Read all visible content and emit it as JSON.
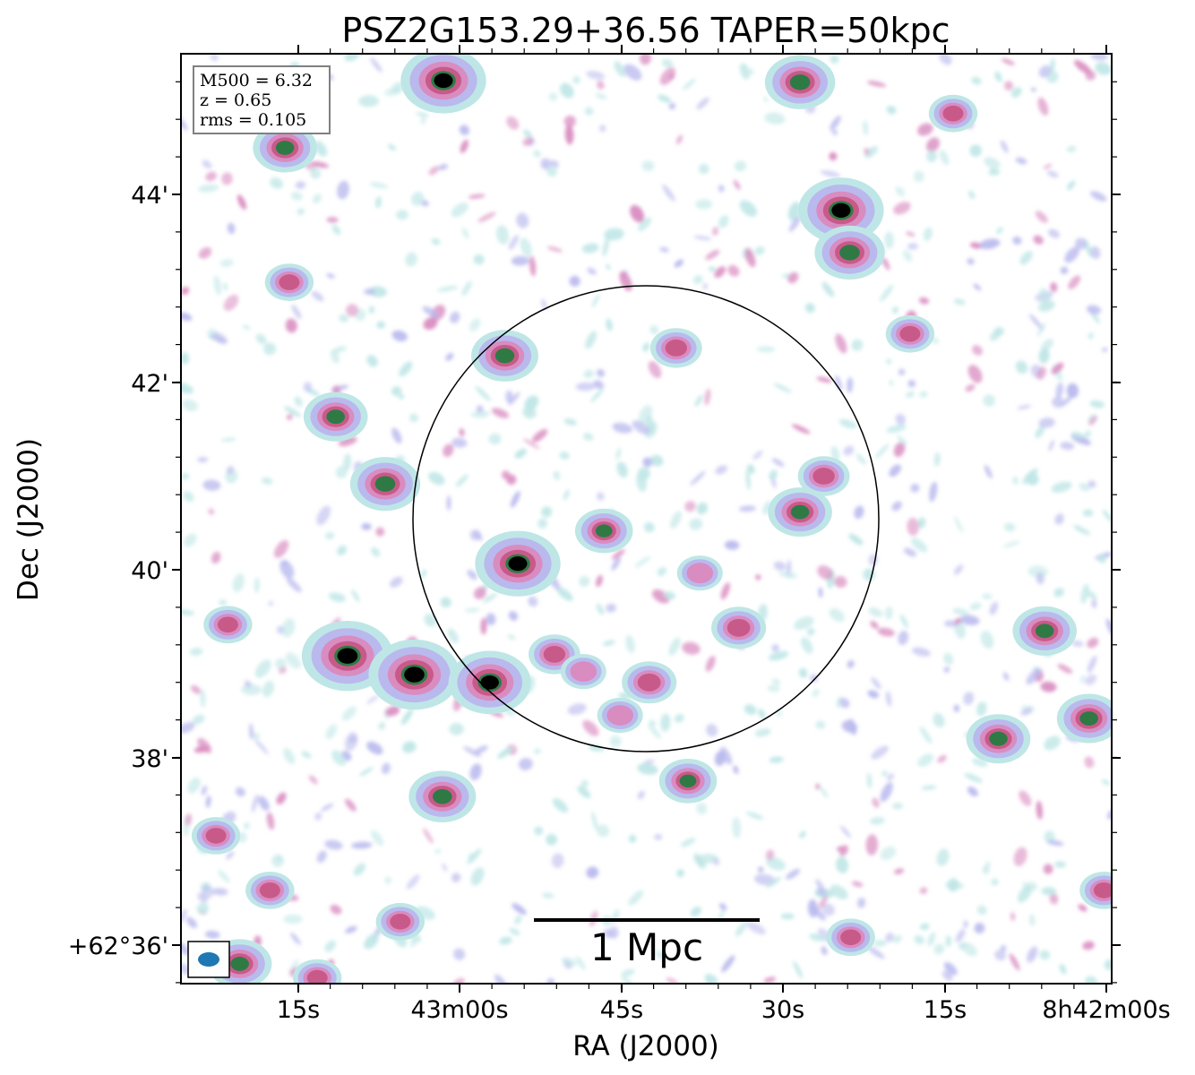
{
  "chart_data": {
    "type": "heatmap",
    "title": "PSZ2G153.29+36.56 TAPER=50kpc",
    "xlabel": "RA (J2000)",
    "ylabel": "Dec (J2000)",
    "x_ticks": [
      "15s",
      "43m00s",
      "45s",
      "30s",
      "15s",
      "8h42m00s"
    ],
    "y_ticks": [
      "+62°36'",
      "38'",
      "40'",
      "42'",
      "44'"
    ],
    "info_box": [
      "M500 = 6.32",
      "z = 0.65",
      "rms = 0.105"
    ],
    "scalebar_label": "1 Mpc",
    "colormap": "cubehelix_r",
    "colors": {
      "low": "#bfe6e6",
      "mid_low": "#b9b9ee",
      "mid": "#d98cc0",
      "mid_high": "#c85a8a",
      "high": "#2f7a44",
      "peak": "#000000",
      "circle": "#000000",
      "beam": "#1f77b4"
    },
    "sources": [
      {
        "ra": "08:43:10.4",
        "dec": "62:39:05",
        "flux": 1.0
      },
      {
        "ra": "08:43:04.2",
        "dec": "62:38:53",
        "flux": 1.0
      },
      {
        "ra": "08:42:57.2",
        "dec": "62:38:48",
        "flux": 0.85
      },
      {
        "ra": "08:42:54.6",
        "dec": "62:40:04",
        "flux": 0.9
      },
      {
        "ra": "08:43:01.5",
        "dec": "62:45:13",
        "flux": 0.9
      },
      {
        "ra": "08:42:24.6",
        "dec": "62:43:50",
        "flux": 0.9
      },
      {
        "ra": "08:42:23.8",
        "dec": "62:43:23",
        "flux": 0.65
      },
      {
        "ra": "08:42:28.4",
        "dec": "62:45:12",
        "flux": 0.65
      },
      {
        "ra": "08:43:06.9",
        "dec": "62:40:55",
        "flux": 0.65
      },
      {
        "ra": "08:42:55.8",
        "dec": "62:42:17",
        "flux": 0.6
      },
      {
        "ra": "08:43:01.6",
        "dec": "62:37:35",
        "flux": 0.6
      },
      {
        "ra": "08:43:16.2",
        "dec": "62:44:30",
        "flux": 0.55
      },
      {
        "ra": "08:43:11.5",
        "dec": "62:41:38",
        "flux": 0.55
      },
      {
        "ra": "08:42:28.4",
        "dec": "62:40:37",
        "flux": 0.55
      },
      {
        "ra": "08:42:05.7",
        "dec": "62:39:21",
        "flux": 0.55
      },
      {
        "ra": "08:42:01.6",
        "dec": "62:38:25",
        "flux": 0.55
      },
      {
        "ra": "08:42:10.0",
        "dec": "62:38:12",
        "flux": 0.55
      },
      {
        "ra": "08:43:20.4",
        "dec": "62:35:48",
        "flux": 0.55
      },
      {
        "ra": "08:42:46.6",
        "dec": "62:40:25",
        "flux": 0.45
      },
      {
        "ra": "08:42:38.8",
        "dec": "62:37:45",
        "flux": 0.45
      },
      {
        "ra": "08:42:42.4",
        "dec": "62:38:48",
        "flux": 0.4
      },
      {
        "ra": "08:42:34.1",
        "dec": "62:39:23",
        "flux": 0.4
      },
      {
        "ra": "08:42:39.9",
        "dec": "62:42:22",
        "flux": 0.35
      },
      {
        "ra": "08:42:51.2",
        "dec": "62:39:06",
        "flux": 0.35
      },
      {
        "ra": "08:42:26.2",
        "dec": "62:41:00",
        "flux": 0.35
      },
      {
        "ra": "08:42:18.2",
        "dec": "62:42:31",
        "flux": 0.3
      },
      {
        "ra": "08:43:05.5",
        "dec": "62:36:15",
        "flux": 0.3
      },
      {
        "ra": "08:43:22.6",
        "dec": "62:37:10",
        "flux": 0.3
      },
      {
        "ra": "08:42:23.7",
        "dec": "62:36:05",
        "flux": 0.3
      },
      {
        "ra": "08:42:00.2",
        "dec": "62:36:35",
        "flux": 0.3
      },
      {
        "ra": "08:43:17.6",
        "dec": "62:36:35",
        "flux": 0.3
      },
      {
        "ra": "08:43:13.2",
        "dec": "62:35:39",
        "flux": 0.3
      },
      {
        "ra": "08:42:14.2",
        "dec": "62:44:52",
        "flux": 0.3
      },
      {
        "ra": "08:43:21.5",
        "dec": "62:39:25",
        "flux": 0.3
      },
      {
        "ra": "08:43:15.8",
        "dec": "62:43:04",
        "flux": 0.3
      },
      {
        "ra": "08:42:45.1",
        "dec": "62:38:27",
        "flux": 0.25
      },
      {
        "ra": "08:42:48.5",
        "dec": "62:38:55",
        "flux": 0.25
      },
      {
        "ra": "08:42:37.7",
        "dec": "62:39:58",
        "flux": 0.25
      }
    ],
    "noise_patches": 900,
    "beam": "ellipse"
  }
}
